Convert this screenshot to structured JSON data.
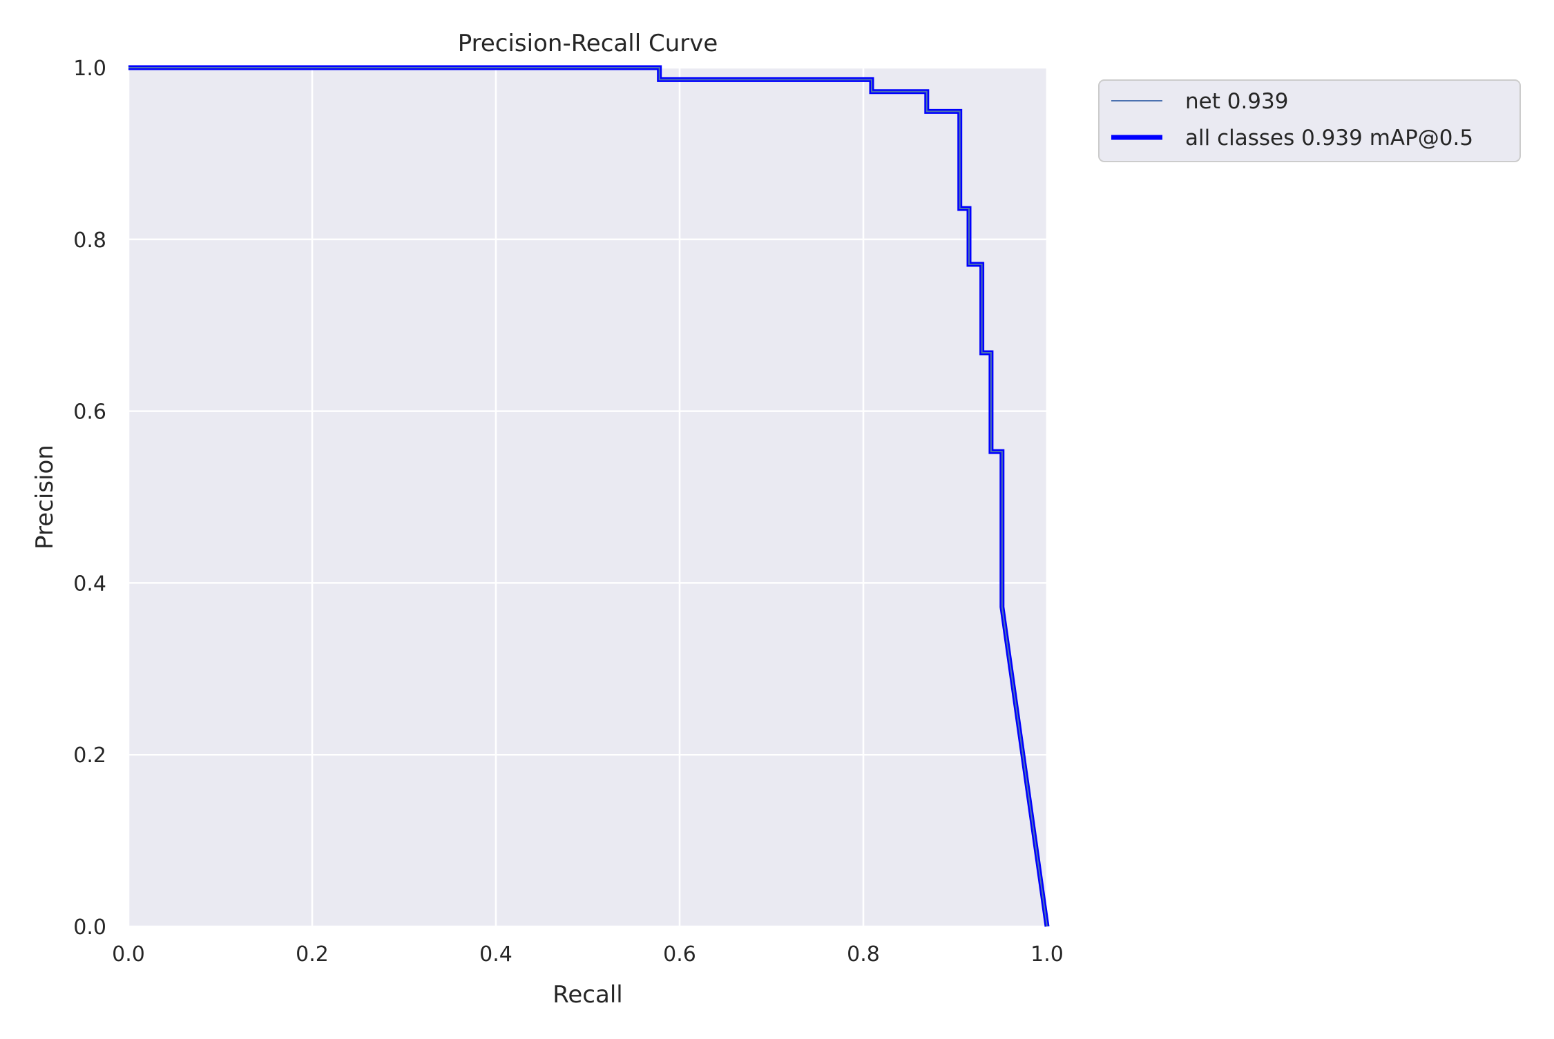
{
  "chart_data": {
    "type": "line",
    "title": "Precision-Recall Curve",
    "xlabel": "Recall",
    "ylabel": "Precision",
    "xlim": [
      0,
      1
    ],
    "ylim": [
      0,
      1
    ],
    "grid": true,
    "x_ticks": [
      "0.0",
      "0.2",
      "0.4",
      "0.6",
      "0.8",
      "1.0"
    ],
    "y_ticks": [
      "0.0",
      "0.2",
      "0.4",
      "0.6",
      "0.8",
      "1.0"
    ],
    "legend_position": "outside-top-right",
    "colors": {
      "plot_background": "#eaeaf2",
      "grid": "#ffffff",
      "net_series": "#4c72b0",
      "all_classes_series": "#0000ff"
    },
    "series": [
      {
        "name": "net 0.939",
        "style": "thin",
        "points": [
          [
            0,
            1.0
          ],
          [
            0.578,
            1.0
          ],
          [
            0.578,
            0.986
          ],
          [
            0.809,
            0.986
          ],
          [
            0.809,
            0.972
          ],
          [
            0.869,
            0.972
          ],
          [
            0.869,
            0.949
          ],
          [
            0.905,
            0.949
          ],
          [
            0.905,
            0.836
          ],
          [
            0.915,
            0.836
          ],
          [
            0.915,
            0.771
          ],
          [
            0.929,
            0.771
          ],
          [
            0.929,
            0.668
          ],
          [
            0.939,
            0.668
          ],
          [
            0.939,
            0.553
          ],
          [
            0.951,
            0.553
          ],
          [
            0.951,
            0.372
          ],
          [
            1.0,
            0.0
          ]
        ]
      },
      {
        "name": "all classes 0.939 mAP@0.5",
        "style": "thick",
        "points": [
          [
            0,
            1.0
          ],
          [
            0.578,
            1.0
          ],
          [
            0.578,
            0.986
          ],
          [
            0.809,
            0.986
          ],
          [
            0.809,
            0.972
          ],
          [
            0.869,
            0.972
          ],
          [
            0.869,
            0.949
          ],
          [
            0.905,
            0.949
          ],
          [
            0.905,
            0.836
          ],
          [
            0.915,
            0.836
          ],
          [
            0.915,
            0.771
          ],
          [
            0.929,
            0.771
          ],
          [
            0.929,
            0.668
          ],
          [
            0.939,
            0.668
          ],
          [
            0.939,
            0.553
          ],
          [
            0.951,
            0.553
          ],
          [
            0.951,
            0.372
          ],
          [
            1.0,
            0.0
          ]
        ]
      }
    ]
  }
}
